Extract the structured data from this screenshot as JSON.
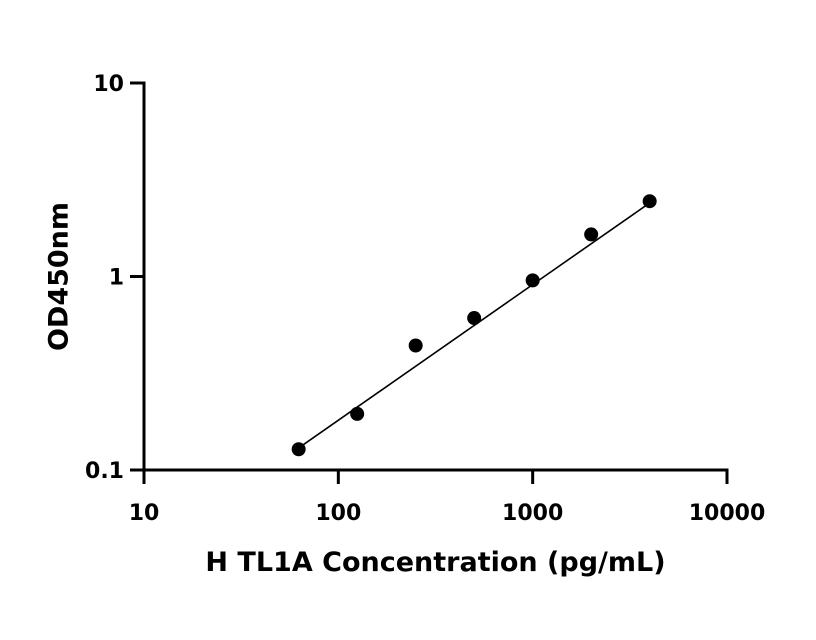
{
  "chart_data": {
    "type": "scatter",
    "title": "",
    "xlabel": "H TL1A Concentration (pg/mL)",
    "ylabel": "OD450nm",
    "x_scale": "log",
    "y_scale": "log",
    "xlim": [
      10,
      10000
    ],
    "ylim": [
      0.1,
      10
    ],
    "grid": false,
    "legend": "none",
    "x_ticks": [
      10,
      100,
      1000,
      10000
    ],
    "x_tick_labels": [
      "10",
      "100",
      "1000",
      "10000"
    ],
    "y_ticks": [
      0.1,
      1,
      10
    ],
    "y_tick_labels": [
      "0.1",
      "1",
      "10"
    ],
    "points": {
      "x": [
        62.5,
        125,
        250,
        500,
        1000,
        2000,
        4000
      ],
      "y": [
        0.128,
        0.195,
        0.44,
        0.61,
        0.955,
        1.65,
        2.45
      ]
    },
    "fit_line": {
      "x": [
        62.5,
        4000
      ],
      "y": [
        0.13,
        2.4
      ]
    },
    "colors": {
      "marker": "#000000",
      "line": "#000000",
      "axis": "#000000"
    }
  }
}
